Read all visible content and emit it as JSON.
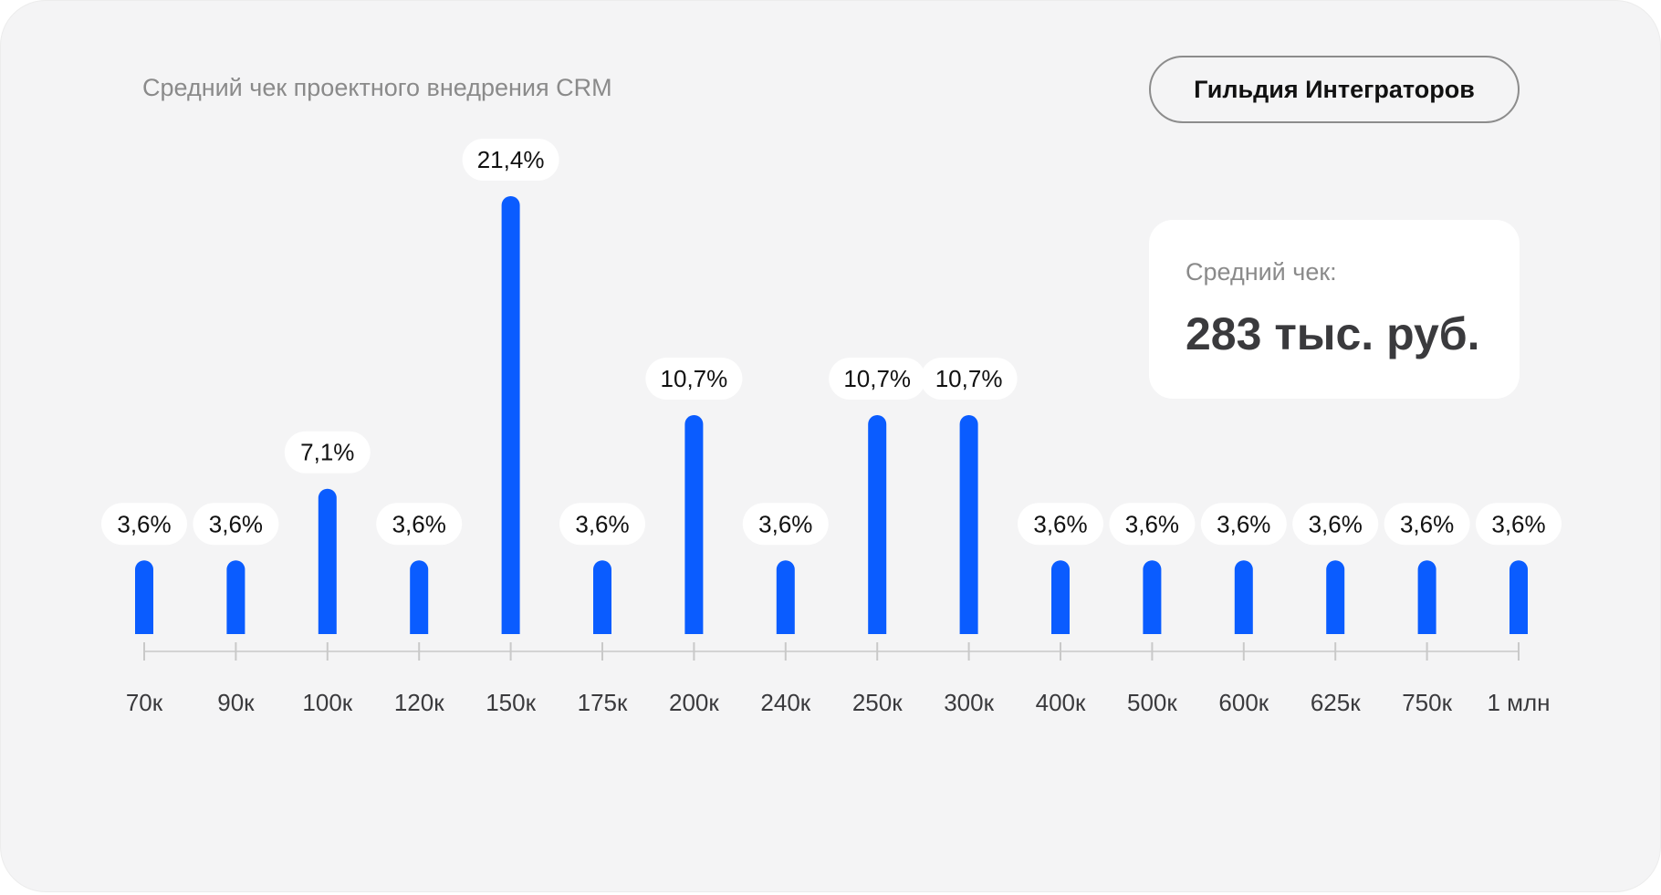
{
  "header": {
    "title": "Средний чек проектного внедрения CRM",
    "brand": "Гильдия Интеграторов"
  },
  "summary": {
    "label": "Средний чек:",
    "value": "283 тыс. руб."
  },
  "colors": {
    "bar": "#0a5cff",
    "background": "#f4f4f5",
    "label_background": "#ffffff"
  },
  "chart_data": {
    "type": "bar",
    "title": "Средний чек проектного внедрения CRM",
    "xlabel": "",
    "ylabel": "",
    "grid": false,
    "legend": "none",
    "categories": [
      "70к",
      "90к",
      "100к",
      "120к",
      "150к",
      "175к",
      "200к",
      "240к",
      "250к",
      "300к",
      "400к",
      "500к",
      "600к",
      "625к",
      "750к",
      "1 млн"
    ],
    "values": [
      3.6,
      3.6,
      7.1,
      3.6,
      21.4,
      3.6,
      10.7,
      3.6,
      10.7,
      10.7,
      3.6,
      3.6,
      3.6,
      3.6,
      3.6,
      3.6
    ],
    "labels": [
      "3,6%",
      "3,6%",
      "7,1%",
      "3,6%",
      "21,4%",
      "3,6%",
      "10,7%",
      "3,6%",
      "10,7%",
      "10,7%",
      "3,6%",
      "3,6%",
      "3,6%",
      "3,6%",
      "3,6%",
      "3,6%"
    ],
    "ylim": [
      0,
      21.4
    ]
  }
}
